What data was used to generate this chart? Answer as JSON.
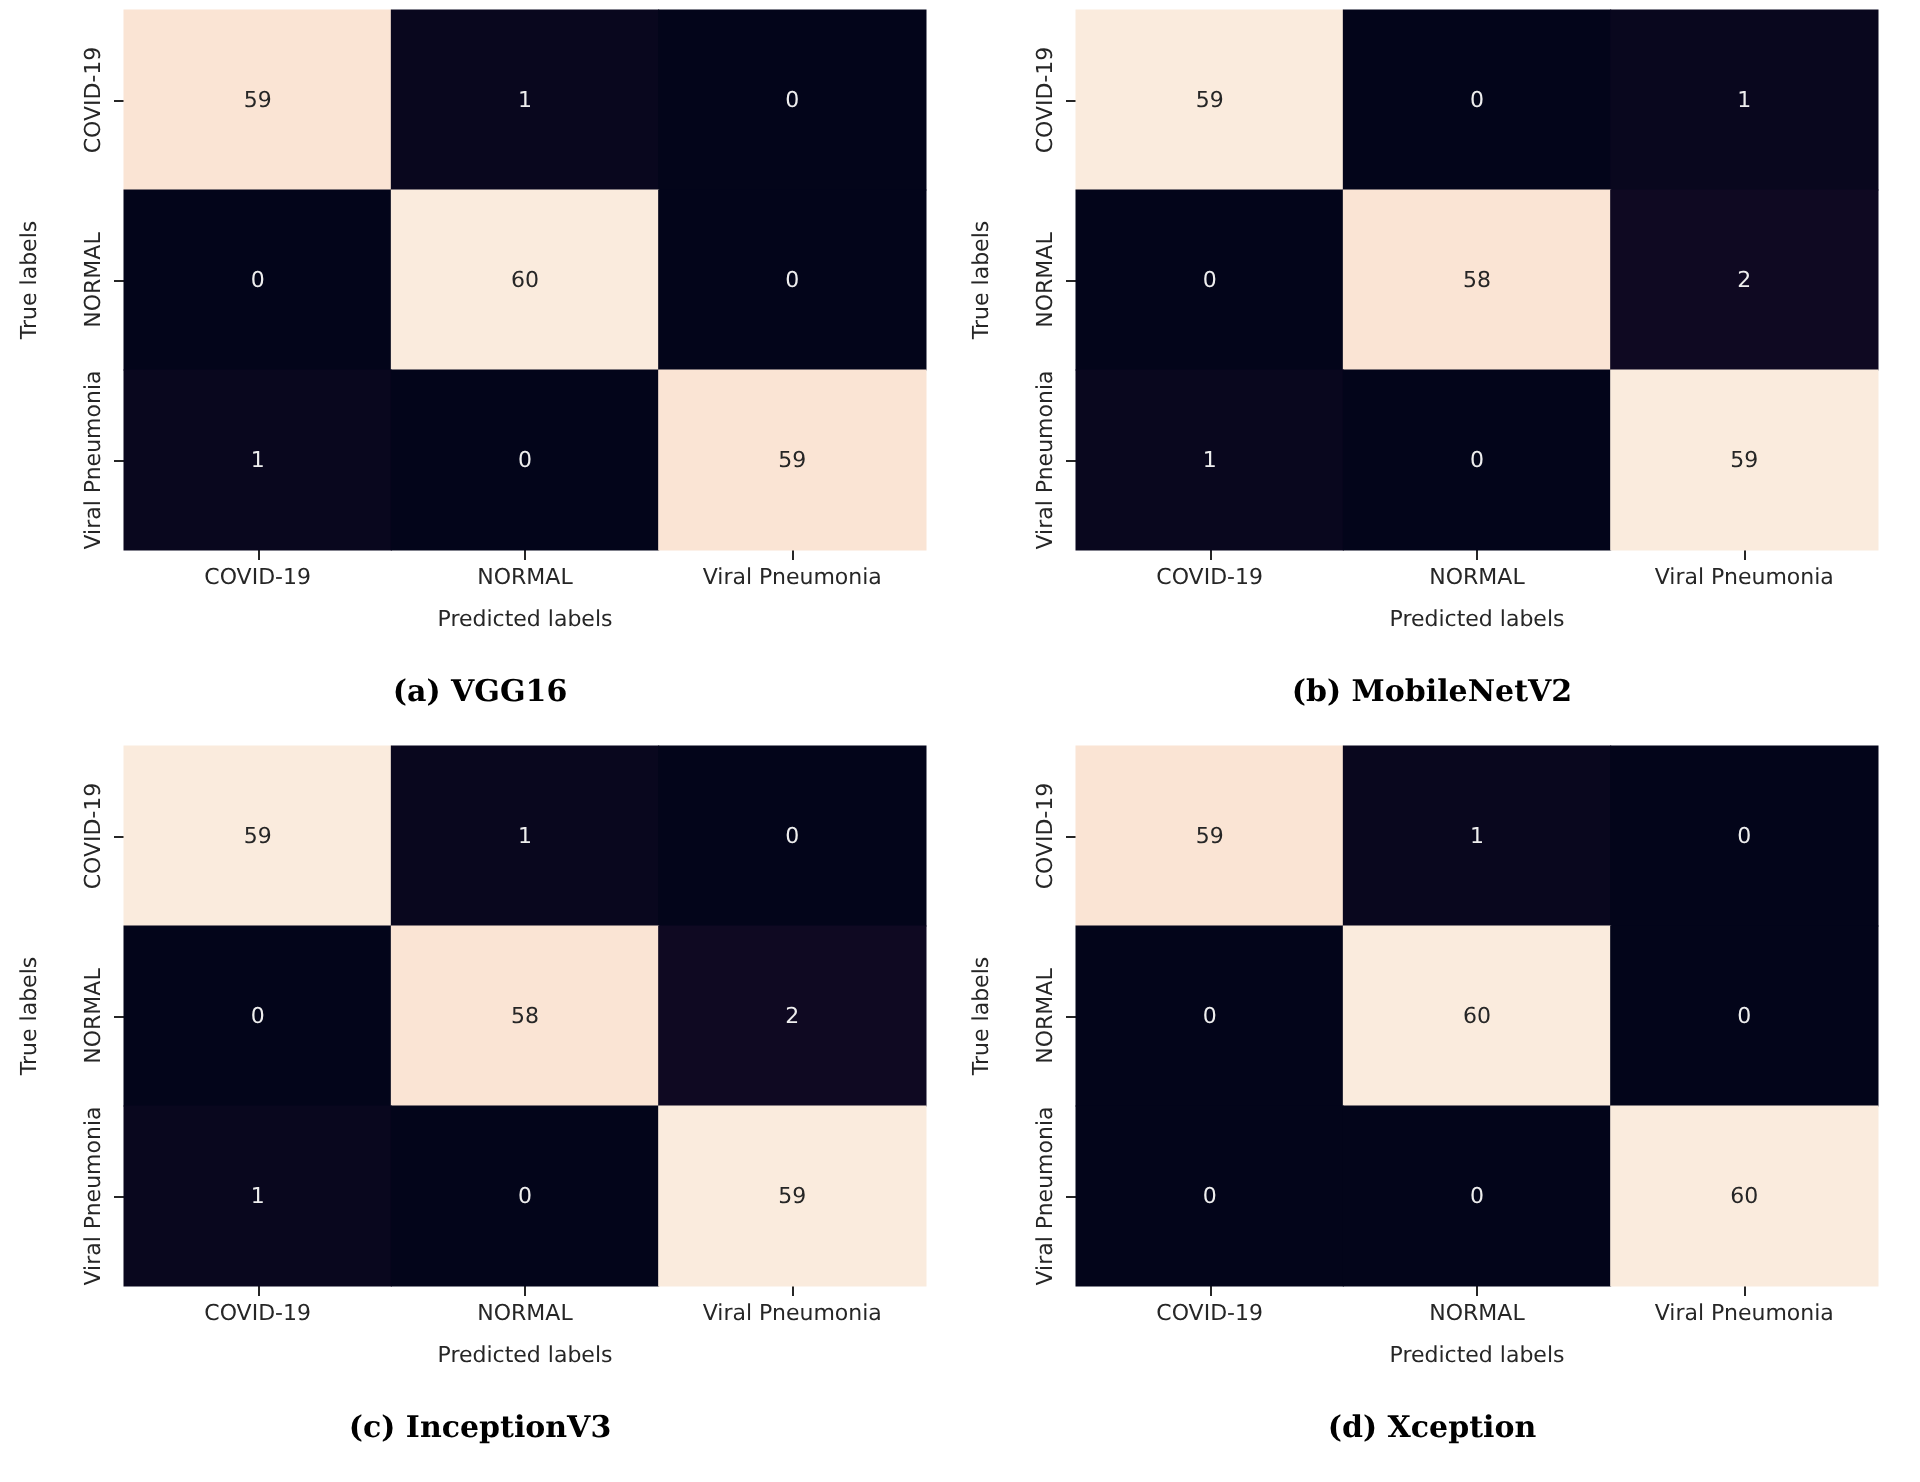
{
  "chart_data": [
    {
      "type": "heatmap",
      "title": "(a) VGG16",
      "xlabel": "Predicted labels",
      "ylabel": "True labels",
      "categories": [
        "COVID-19",
        "NORMAL",
        "Viral Pneumonia"
      ],
      "y_categories": [
        "COVID-19",
        "NORMAL",
        "Viral Pneumonia"
      ],
      "data_labels": true,
      "cells": [
        [
          59,
          1,
          0
        ],
        [
          0,
          60,
          0
        ],
        [
          1,
          0,
          59
        ]
      ]
    },
    {
      "type": "heatmap",
      "title": "(b) MobileNetV2",
      "xlabel": "Predicted labels",
      "ylabel": "True labels",
      "categories": [
        "COVID-19",
        "NORMAL",
        "Viral Pneumonia"
      ],
      "y_categories": [
        "COVID-19",
        "NORMAL",
        "Viral Pneumonia"
      ],
      "data_labels": true,
      "cells": [
        [
          59,
          0,
          1
        ],
        [
          0,
          58,
          2
        ],
        [
          1,
          0,
          59
        ]
      ]
    },
    {
      "type": "heatmap",
      "title": "(c) InceptionV3",
      "xlabel": "Predicted labels",
      "ylabel": "True labels",
      "categories": [
        "COVID-19",
        "NORMAL",
        "Viral Pneumonia"
      ],
      "y_categories": [
        "COVID-19",
        "NORMAL",
        "Viral Pneumonia"
      ],
      "data_labels": true,
      "cells": [
        [
          59,
          1,
          0
        ],
        [
          0,
          58,
          2
        ],
        [
          1,
          0,
          59
        ]
      ]
    },
    {
      "type": "heatmap",
      "title": "(d) Xception",
      "xlabel": "Predicted labels",
      "ylabel": "True labels",
      "categories": [
        "COVID-19",
        "NORMAL",
        "Viral Pneumonia"
      ],
      "y_categories": [
        "COVID-19",
        "NORMAL",
        "Viral Pneumonia"
      ],
      "data_labels": true,
      "cells": [
        [
          59,
          1,
          0
        ],
        [
          0,
          60,
          0
        ],
        [
          0,
          0,
          60
        ]
      ]
    }
  ]
}
